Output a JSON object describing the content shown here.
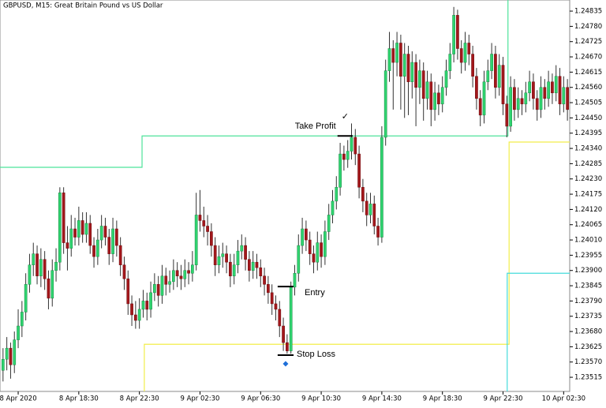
{
  "chart_data": {
    "type": "candlestick",
    "title": "GBPUSD, M15:  Great Britain Pound vs US Dollar",
    "up_color": "#2fd46f",
    "down_color": "#a3171b",
    "xlim": [
      -0.8,
      149.6
    ],
    "ylim": [
      1.23464,
      1.24875
    ],
    "xticks": [
      {
        "value": 4,
        "label": "8 Apr 2020"
      },
      {
        "value": 20,
        "label": "8 Apr 18:30"
      },
      {
        "value": 36,
        "label": "8 Apr 22:30"
      },
      {
        "value": 52,
        "label": "9 Apr 02:30"
      },
      {
        "value": 68,
        "label": "9 Apr 06:30"
      },
      {
        "value": 84,
        "label": "9 Apr 10:30"
      },
      {
        "value": 100,
        "label": "9 Apr 14:30"
      },
      {
        "value": 116,
        "label": "9 Apr 18:30"
      },
      {
        "value": 132,
        "label": "9 Apr 22:30"
      },
      {
        "value": 148,
        "label": "10 Apr 02:30"
      }
    ],
    "yticks": [
      1.23515,
      {
        "value": 1.2357,
        "label": "1.23570"
      },
      1.23625,
      {
        "value": 1.2368,
        "label": "1.23680"
      },
      1.23735,
      {
        "value": 1.2379,
        "label": "1.23790"
      },
      1.23845,
      {
        "value": 1.239,
        "label": "1.23900"
      },
      1.23955,
      {
        "value": 1.2401,
        "label": "1.24010"
      },
      1.24065,
      {
        "value": 1.2412,
        "label": "1.24120"
      },
      1.24175,
      {
        "value": 1.2423,
        "label": "1.24230"
      },
      1.24285,
      {
        "value": 1.2434,
        "label": "1.24340"
      },
      1.24395,
      {
        "value": 1.2445,
        "label": "1.24450"
      },
      1.24505,
      {
        "value": 1.2456,
        "label": "1.24560"
      },
      1.24615,
      {
        "value": 1.2467,
        "label": "1.24670"
      },
      1.24725,
      {
        "value": 1.2478,
        "label": "1.24780"
      },
      1.24835
    ],
    "candles": [
      [
        1.2354,
        1.2362,
        1.235,
        1.2358
      ],
      [
        1.2358,
        1.2366,
        1.2354,
        1.2362
      ],
      [
        1.2362,
        1.2364,
        1.2351,
        1.2356
      ],
      [
        1.2356,
        1.2368,
        1.2353,
        1.2365
      ],
      [
        1.2365,
        1.2376,
        1.2362,
        1.237
      ],
      [
        1.237,
        1.2379,
        1.2366,
        1.2375
      ],
      [
        1.2375,
        1.2389,
        1.2372,
        1.2385
      ],
      [
        1.2385,
        1.2396,
        1.2382,
        1.2392
      ],
      [
        1.2392,
        1.24,
        1.2388,
        1.2396
      ],
      [
        1.2396,
        1.2399,
        1.2385,
        1.2388
      ],
      [
        1.2388,
        1.2398,
        1.2384,
        1.2394
      ],
      [
        1.2394,
        1.2397,
        1.2383,
        1.2387
      ],
      [
        1.2387,
        1.239,
        1.2376,
        1.238
      ],
      [
        1.238,
        1.2394,
        1.2377,
        1.239
      ],
      [
        1.239,
        1.2398,
        1.2386,
        1.2393
      ],
      [
        1.2393,
        1.242,
        1.239,
        1.2418
      ],
      [
        1.2418,
        1.242,
        1.2396,
        1.24
      ],
      [
        1.24,
        1.2406,
        1.239,
        1.2398
      ],
      [
        1.2398,
        1.241,
        1.2395,
        1.2405
      ],
      [
        1.2405,
        1.2409,
        1.2399,
        1.2402
      ],
      [
        1.2402,
        1.2413,
        1.2399,
        1.2408
      ],
      [
        1.2408,
        1.2411,
        1.24,
        1.2403
      ],
      [
        1.2403,
        1.2411,
        1.24,
        1.2407
      ],
      [
        1.2407,
        1.241,
        1.2396,
        1.2399
      ],
      [
        1.2399,
        1.2402,
        1.2391,
        1.2395
      ],
      [
        1.2395,
        1.2405,
        1.2392,
        1.2401
      ],
      [
        1.2401,
        1.241,
        1.2398,
        1.2406
      ],
      [
        1.2406,
        1.2409,
        1.2399,
        1.2402
      ],
      [
        1.2402,
        1.2405,
        1.2392,
        1.2396
      ],
      [
        1.2396,
        1.2409,
        1.2393,
        1.2405
      ],
      [
        1.2405,
        1.2408,
        1.2395,
        1.2399
      ],
      [
        1.2399,
        1.2402,
        1.2388,
        1.2392
      ],
      [
        1.2392,
        1.2395,
        1.2383,
        1.2387
      ],
      [
        1.2387,
        1.239,
        1.2374,
        1.2378
      ],
      [
        1.2378,
        1.2381,
        1.237,
        1.2374
      ],
      [
        1.2374,
        1.2379,
        1.2369,
        1.2372
      ],
      [
        1.2372,
        1.238,
        1.2369,
        1.2376
      ],
      [
        1.2376,
        1.2383,
        1.2373,
        1.2379
      ],
      [
        1.2379,
        1.2382,
        1.2372,
        1.2376
      ],
      [
        1.2376,
        1.2386,
        1.2373,
        1.2382
      ],
      [
        1.2382,
        1.2389,
        1.2379,
        1.2385
      ],
      [
        1.2385,
        1.2388,
        1.2377,
        1.2381
      ],
      [
        1.2381,
        1.2392,
        1.2378,
        1.2388
      ],
      [
        1.2388,
        1.2391,
        1.2381,
        1.2385
      ],
      [
        1.2385,
        1.239,
        1.2382,
        1.2386
      ],
      [
        1.2386,
        1.2394,
        1.2383,
        1.239
      ],
      [
        1.239,
        1.2393,
        1.2384,
        1.2388
      ],
      [
        1.2388,
        1.2392,
        1.2383,
        1.2387
      ],
      [
        1.2387,
        1.2394,
        1.2384,
        1.239
      ],
      [
        1.239,
        1.2393,
        1.2385,
        1.2389
      ],
      [
        1.2389,
        1.2397,
        1.2386,
        1.2392
      ],
      [
        1.2392,
        1.2418,
        1.239,
        1.241
      ],
      [
        1.241,
        1.2419,
        1.2404,
        1.2408
      ],
      [
        1.2408,
        1.2413,
        1.2402,
        1.2406
      ],
      [
        1.2406,
        1.241,
        1.2399,
        1.2404
      ],
      [
        1.2404,
        1.2407,
        1.2395,
        1.2399
      ],
      [
        1.2399,
        1.2402,
        1.2388,
        1.2392
      ],
      [
        1.2392,
        1.2399,
        1.2389,
        1.2395
      ],
      [
        1.2395,
        1.24,
        1.2391,
        1.2396
      ],
      [
        1.2396,
        1.2399,
        1.2389,
        1.2393
      ],
      [
        1.2393,
        1.2396,
        1.2384,
        1.2388
      ],
      [
        1.2388,
        1.2396,
        1.2385,
        1.2392
      ],
      [
        1.2392,
        1.2401,
        1.2389,
        1.2397
      ],
      [
        1.2397,
        1.2403,
        1.2394,
        1.2399
      ],
      [
        1.2399,
        1.2402,
        1.239,
        1.2394
      ],
      [
        1.2394,
        1.2397,
        1.2386,
        1.239
      ],
      [
        1.239,
        1.2397,
        1.2387,
        1.2393
      ],
      [
        1.2393,
        1.2396,
        1.2387,
        1.2391
      ],
      [
        1.2391,
        1.2394,
        1.2384,
        1.2388
      ],
      [
        1.2388,
        1.2391,
        1.2381,
        1.2385
      ],
      [
        1.2385,
        1.2388,
        1.2378,
        1.2382
      ],
      [
        1.2382,
        1.2385,
        1.2374,
        1.2378
      ],
      [
        1.2378,
        1.2381,
        1.2372,
        1.2376
      ],
      [
        1.2376,
        1.2379,
        1.2366,
        1.237
      ],
      [
        1.237,
        1.2373,
        1.2361,
        1.2364
      ],
      [
        1.2364,
        1.2367,
        1.236,
        1.2361
      ],
      [
        1.2361,
        1.2386,
        1.236,
        1.2384
      ],
      [
        1.2384,
        1.2392,
        1.2381,
        1.2389
      ],
      [
        1.2389,
        1.2403,
        1.2386,
        1.2399
      ],
      [
        1.2399,
        1.2409,
        1.2396,
        1.2405
      ],
      [
        1.2405,
        1.2408,
        1.2397,
        1.2401
      ],
      [
        1.2401,
        1.2404,
        1.2392,
        1.2396
      ],
      [
        1.2396,
        1.2399,
        1.2389,
        1.2393
      ],
      [
        1.2393,
        1.2404,
        1.239,
        1.24
      ],
      [
        1.24,
        1.2403,
        1.2391,
        1.2395
      ],
      [
        1.2395,
        1.2408,
        1.2392,
        1.2404
      ],
      [
        1.2404,
        1.2414,
        1.2401,
        1.241
      ],
      [
        1.241,
        1.2419,
        1.2407,
        1.2415
      ],
      [
        1.2415,
        1.2424,
        1.2412,
        1.242
      ],
      [
        1.242,
        1.2436,
        1.2417,
        1.2432
      ],
      [
        1.2432,
        1.2435,
        1.2426,
        1.243
      ],
      [
        1.243,
        1.2437,
        1.2427,
        1.2433
      ],
      [
        1.2433,
        1.2443,
        1.243,
        1.2438
      ],
      [
        1.2438,
        1.2441,
        1.2428,
        1.2432
      ],
      [
        1.2432,
        1.2435,
        1.2416,
        1.242
      ],
      [
        1.242,
        1.2423,
        1.2411,
        1.2415
      ],
      [
        1.2415,
        1.2418,
        1.2406,
        1.241
      ],
      [
        1.241,
        1.2418,
        1.2407,
        1.2414
      ],
      [
        1.2414,
        1.2417,
        1.2403,
        1.2406
      ],
      [
        1.2406,
        1.2409,
        1.2399,
        1.2402
      ],
      [
        1.2402,
        1.2442,
        1.24,
        1.2438
      ],
      [
        1.2438,
        1.2466,
        1.2435,
        1.2462
      ],
      [
        1.2462,
        1.2476,
        1.2458,
        1.247
      ],
      [
        1.247,
        1.2473,
        1.2448,
        1.2465
      ],
      [
        1.2465,
        1.2476,
        1.246,
        1.2472
      ],
      [
        1.2472,
        1.2475,
        1.2448,
        1.246
      ],
      [
        1.246,
        1.2472,
        1.2445,
        1.2468
      ],
      [
        1.2468,
        1.2471,
        1.2446,
        1.2458
      ],
      [
        1.2458,
        1.2469,
        1.2452,
        1.2465
      ],
      [
        1.2465,
        1.2468,
        1.2442,
        1.2456
      ],
      [
        1.2456,
        1.2466,
        1.245,
        1.2462
      ],
      [
        1.2462,
        1.2465,
        1.2444,
        1.2452
      ],
      [
        1.2452,
        1.2462,
        1.2448,
        1.2458
      ],
      [
        1.2458,
        1.2461,
        1.2442,
        1.2448
      ],
      [
        1.2448,
        1.2458,
        1.2444,
        1.2454
      ],
      [
        1.2454,
        1.2457,
        1.2446,
        1.245
      ],
      [
        1.245,
        1.246,
        1.2447,
        1.2456
      ],
      [
        1.2456,
        1.2466,
        1.2453,
        1.2462
      ],
      [
        1.2462,
        1.2472,
        1.2459,
        1.2468
      ],
      [
        1.2468,
        1.2485,
        1.2465,
        1.2482
      ],
      [
        1.2482,
        1.2484,
        1.2466,
        1.247
      ],
      [
        1.247,
        1.2473,
        1.2461,
        1.2465
      ],
      [
        1.2465,
        1.2476,
        1.2462,
        1.2472
      ],
      [
        1.2472,
        1.2475,
        1.2464,
        1.2468
      ],
      [
        1.2468,
        1.2471,
        1.2456,
        1.246
      ],
      [
        1.246,
        1.2463,
        1.2448,
        1.2452
      ],
      [
        1.2452,
        1.2455,
        1.2442,
        1.2446
      ],
      [
        1.2446,
        1.2462,
        1.2443,
        1.2458
      ],
      [
        1.2458,
        1.2466,
        1.2455,
        1.2462
      ],
      [
        1.2462,
        1.2472,
        1.2459,
        1.2468
      ],
      [
        1.2468,
        1.2471,
        1.2452,
        1.2456
      ],
      [
        1.2456,
        1.2468,
        1.2453,
        1.2464
      ],
      [
        1.2464,
        1.2467,
        1.2446,
        1.245
      ],
      [
        1.245,
        1.2453,
        1.2438,
        1.2442
      ],
      [
        1.2442,
        1.246,
        1.244,
        1.2456
      ],
      [
        1.2456,
        1.2459,
        1.2444,
        1.2448
      ],
      [
        1.2448,
        1.2456,
        1.2445,
        1.2452
      ],
      [
        1.2452,
        1.2455,
        1.2446,
        1.245
      ],
      [
        1.245,
        1.2458,
        1.2447,
        1.2454
      ],
      [
        1.2454,
        1.2462,
        1.2451,
        1.2458
      ],
      [
        1.2458,
        1.2461,
        1.2448,
        1.2452
      ],
      [
        1.2452,
        1.2455,
        1.2444,
        1.2448
      ],
      [
        1.2448,
        1.246,
        1.2445,
        1.2456
      ],
      [
        1.2456,
        1.2459,
        1.2448,
        1.2452
      ],
      [
        1.2452,
        1.2462,
        1.2449,
        1.2458
      ],
      [
        1.2458,
        1.2461,
        1.245,
        1.2454
      ],
      [
        1.2454,
        1.2464,
        1.2451,
        1.246
      ],
      [
        1.246,
        1.2463,
        1.2446,
        1.245
      ],
      [
        1.245,
        1.246,
        1.2447,
        1.2456
      ],
      [
        1.2456,
        1.2459,
        1.2444,
        1.2448
      ]
    ],
    "levels": [
      {
        "color": "#4ee39a",
        "x": [
          -0.8,
          36.7,
          36.7,
          133.3,
          133.3
        ],
        "values": [
          1.24272,
          1.24272,
          1.24385,
          1.24385,
          1.24875
        ]
      },
      {
        "color": "#f2ee4a",
        "x": [
          37.3,
          37.3,
          133.6,
          133.6,
          149.6
        ],
        "values": [
          1.23464,
          1.23634,
          1.23634,
          1.24363,
          1.24363
        ]
      },
      {
        "color": "#45dcdc",
        "x": [
          133.1,
          133.1,
          149.6
        ],
        "values": [
          1.23464,
          1.2389,
          1.2389
        ]
      }
    ],
    "annotations": [
      {
        "text": "Take Profit",
        "value": 1.24385,
        "x": [
          88.3,
          92.3
        ],
        "mark": "✓"
      },
      {
        "text": "Entry",
        "value": 1.23842,
        "x": [
          72.5,
          76.7
        ]
      },
      {
        "text": "Stop Loss",
        "value": 1.23595,
        "x": [
          72.5,
          76.7
        ]
      }
    ]
  }
}
